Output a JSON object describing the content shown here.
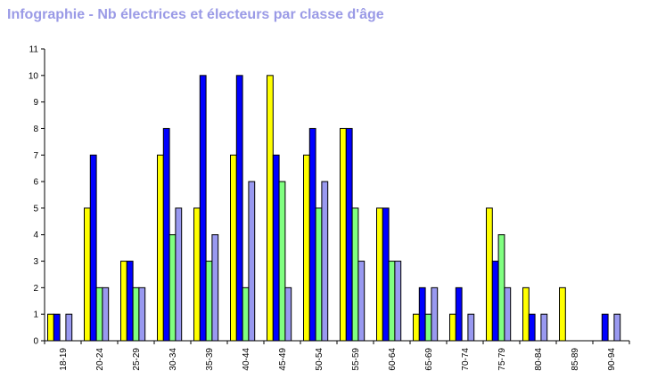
{
  "chart_data": {
    "type": "bar",
    "title": "Infographie - Nb électrices et électeurs par classe d'âge",
    "xlabel": "",
    "ylabel": "",
    "ylim": [
      0,
      11
    ],
    "y_ticks": [
      0,
      1,
      2,
      3,
      4,
      5,
      6,
      7,
      8,
      9,
      10,
      11
    ],
    "grid": false,
    "legend": "none",
    "categories": [
      "18-19",
      "20-24",
      "25-29",
      "30-34",
      "35-39",
      "40-44",
      "45-49",
      "50-54",
      "55-59",
      "60-64",
      "65-69",
      "70-74",
      "75-79",
      "80-84",
      "85-89",
      "90-94"
    ],
    "series": [
      {
        "color": "#ffff00",
        "values": [
          1,
          5,
          3,
          7,
          5,
          7,
          10,
          7,
          8,
          5,
          1,
          1,
          5,
          2,
          2,
          0
        ]
      },
      {
        "color": "#0000ff",
        "values": [
          1,
          7,
          3,
          8,
          10,
          10,
          7,
          8,
          8,
          5,
          2,
          2,
          3,
          1,
          0,
          1
        ]
      },
      {
        "color": "#80ff80",
        "values": [
          0,
          2,
          2,
          4,
          3,
          2,
          6,
          5,
          5,
          3,
          1,
          0,
          4,
          0,
          0,
          0
        ]
      },
      {
        "color": "#9999f0",
        "values": [
          1,
          2,
          2,
          5,
          4,
          6,
          2,
          6,
          3,
          3,
          2,
          1,
          2,
          1,
          0,
          1
        ]
      }
    ]
  }
}
